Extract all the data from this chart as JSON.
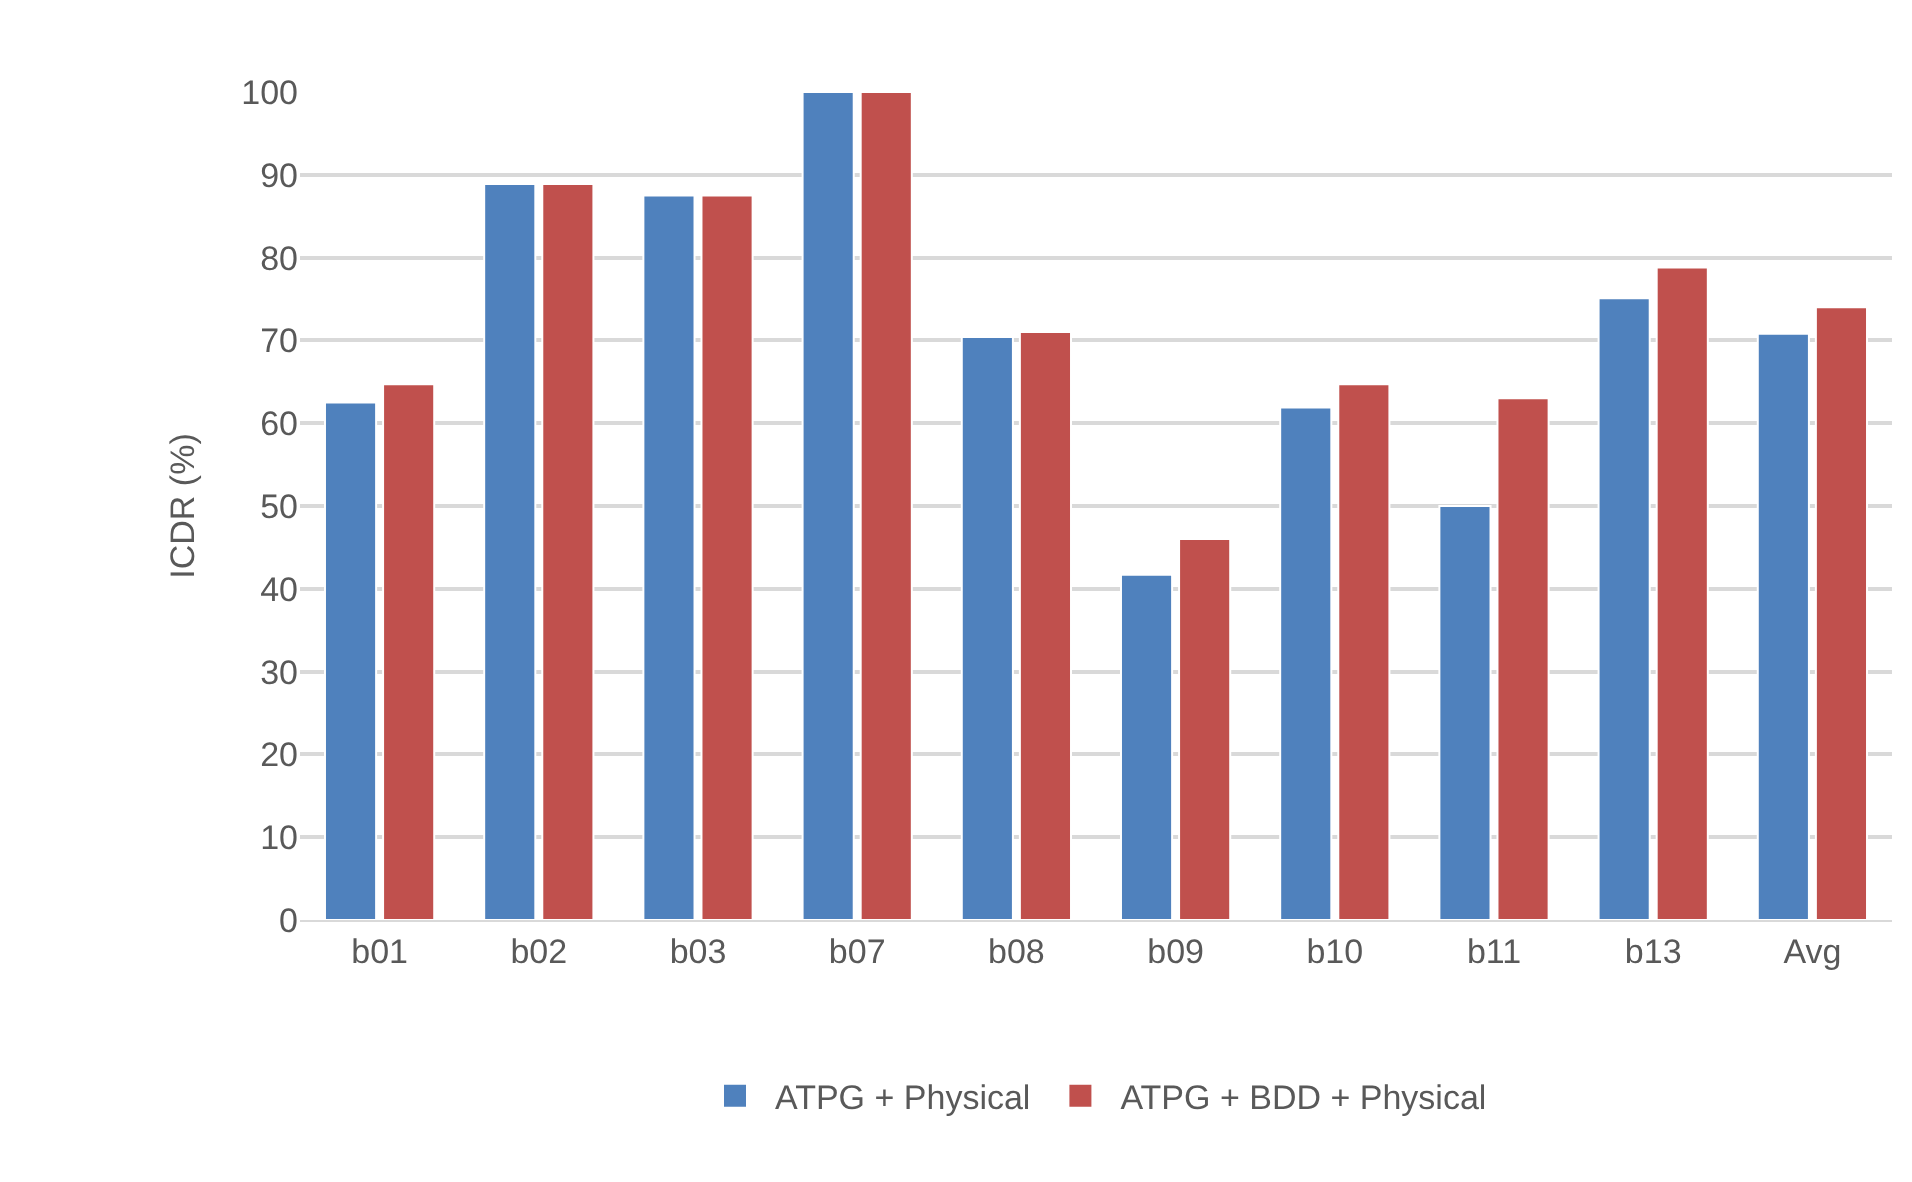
{
  "chart_data": {
    "type": "bar",
    "ylabel": "ICDR (%)",
    "categories": [
      "b01",
      "b02",
      "b03",
      "b07",
      "b08",
      "b09",
      "b10",
      "b11",
      "b13",
      "Avg"
    ],
    "series": [
      {
        "name": "ATPG + Physical",
        "color": "#4f81bd",
        "values": [
          62.5,
          88.9,
          87.5,
          100,
          70.4,
          41.7,
          61.9,
          50,
          75.1,
          70.8
        ]
      },
      {
        "name": "ATPG + BDD + Physical",
        "color": "#c0504d",
        "values": [
          64.7,
          88.9,
          87.5,
          100,
          71,
          46,
          64.7,
          63,
          78.8,
          74
        ]
      }
    ],
    "ylim": [
      0,
      100
    ],
    "yticks": [
      0,
      10,
      20,
      30,
      40,
      50,
      60,
      70,
      80,
      90,
      100
    ],
    "grid": "y",
    "legend": "bottom"
  }
}
